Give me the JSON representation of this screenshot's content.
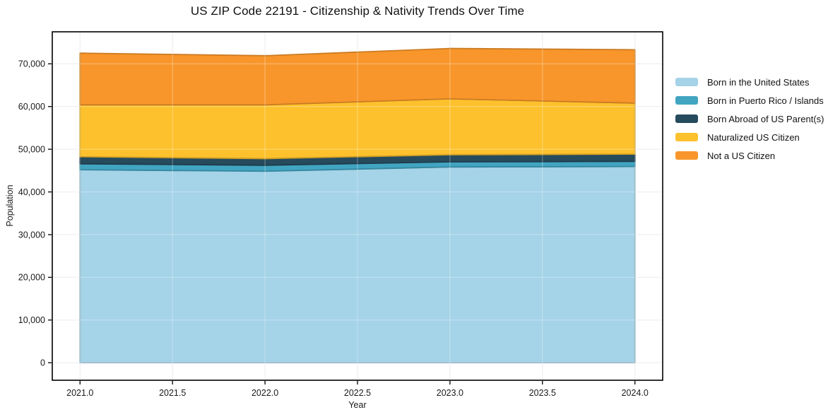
{
  "chart_data": {
    "type": "area",
    "stacked": true,
    "title": "US ZIP Code 22191 - Citizenship & Nativity Trends Over Time",
    "xlabel": "Year",
    "ylabel": "Population",
    "x": [
      2021,
      2022,
      2023,
      2024
    ],
    "series": [
      {
        "name": "Born in the United States",
        "color": "#A5D3E8",
        "values": [
          45200,
          44850,
          45850,
          45950
        ]
      },
      {
        "name": "Born in Puerto Rico / Islands",
        "color": "#41A5C2",
        "values": [
          1400,
          1400,
          1200,
          1200
        ]
      },
      {
        "name": "Born Abroad of US Parent(s)",
        "color": "#264B5D",
        "values": [
          1650,
          1550,
          1650,
          1700
        ]
      },
      {
        "name": "Naturalized US Citizen",
        "color": "#FDC12D",
        "values": [
          12150,
          12600,
          13100,
          11950
        ]
      },
      {
        "name": "Not a US Citizen",
        "color": "#F8962B",
        "values": [
          12100,
          11500,
          11800,
          12500
        ]
      }
    ],
    "xlim": [
      2020.85,
      2024.15
    ],
    "ylim": [
      -4100,
      77500
    ],
    "xticks": [
      2021.0,
      2021.5,
      2022.0,
      2022.5,
      2023.0,
      2023.5,
      2024.0
    ],
    "xtick_labels": [
      "2021.0",
      "2021.5",
      "2022.0",
      "2022.5",
      "2023.0",
      "2023.5",
      "2024.0"
    ],
    "yticks": [
      0,
      10000,
      20000,
      30000,
      40000,
      50000,
      60000,
      70000
    ],
    "ytick_labels": [
      "0",
      "10,000",
      "20,000",
      "30,000",
      "40,000",
      "50,000",
      "60,000",
      "70,000"
    ],
    "grid": true,
    "legend_position": "upper right outside"
  },
  "colors": {
    "background": "#ffffff",
    "grid": "#e8e8ed",
    "grid_over_area": "rgba(255,255,255,0.32)",
    "spine": "#000000",
    "tick_text": "#1a1a1a"
  }
}
